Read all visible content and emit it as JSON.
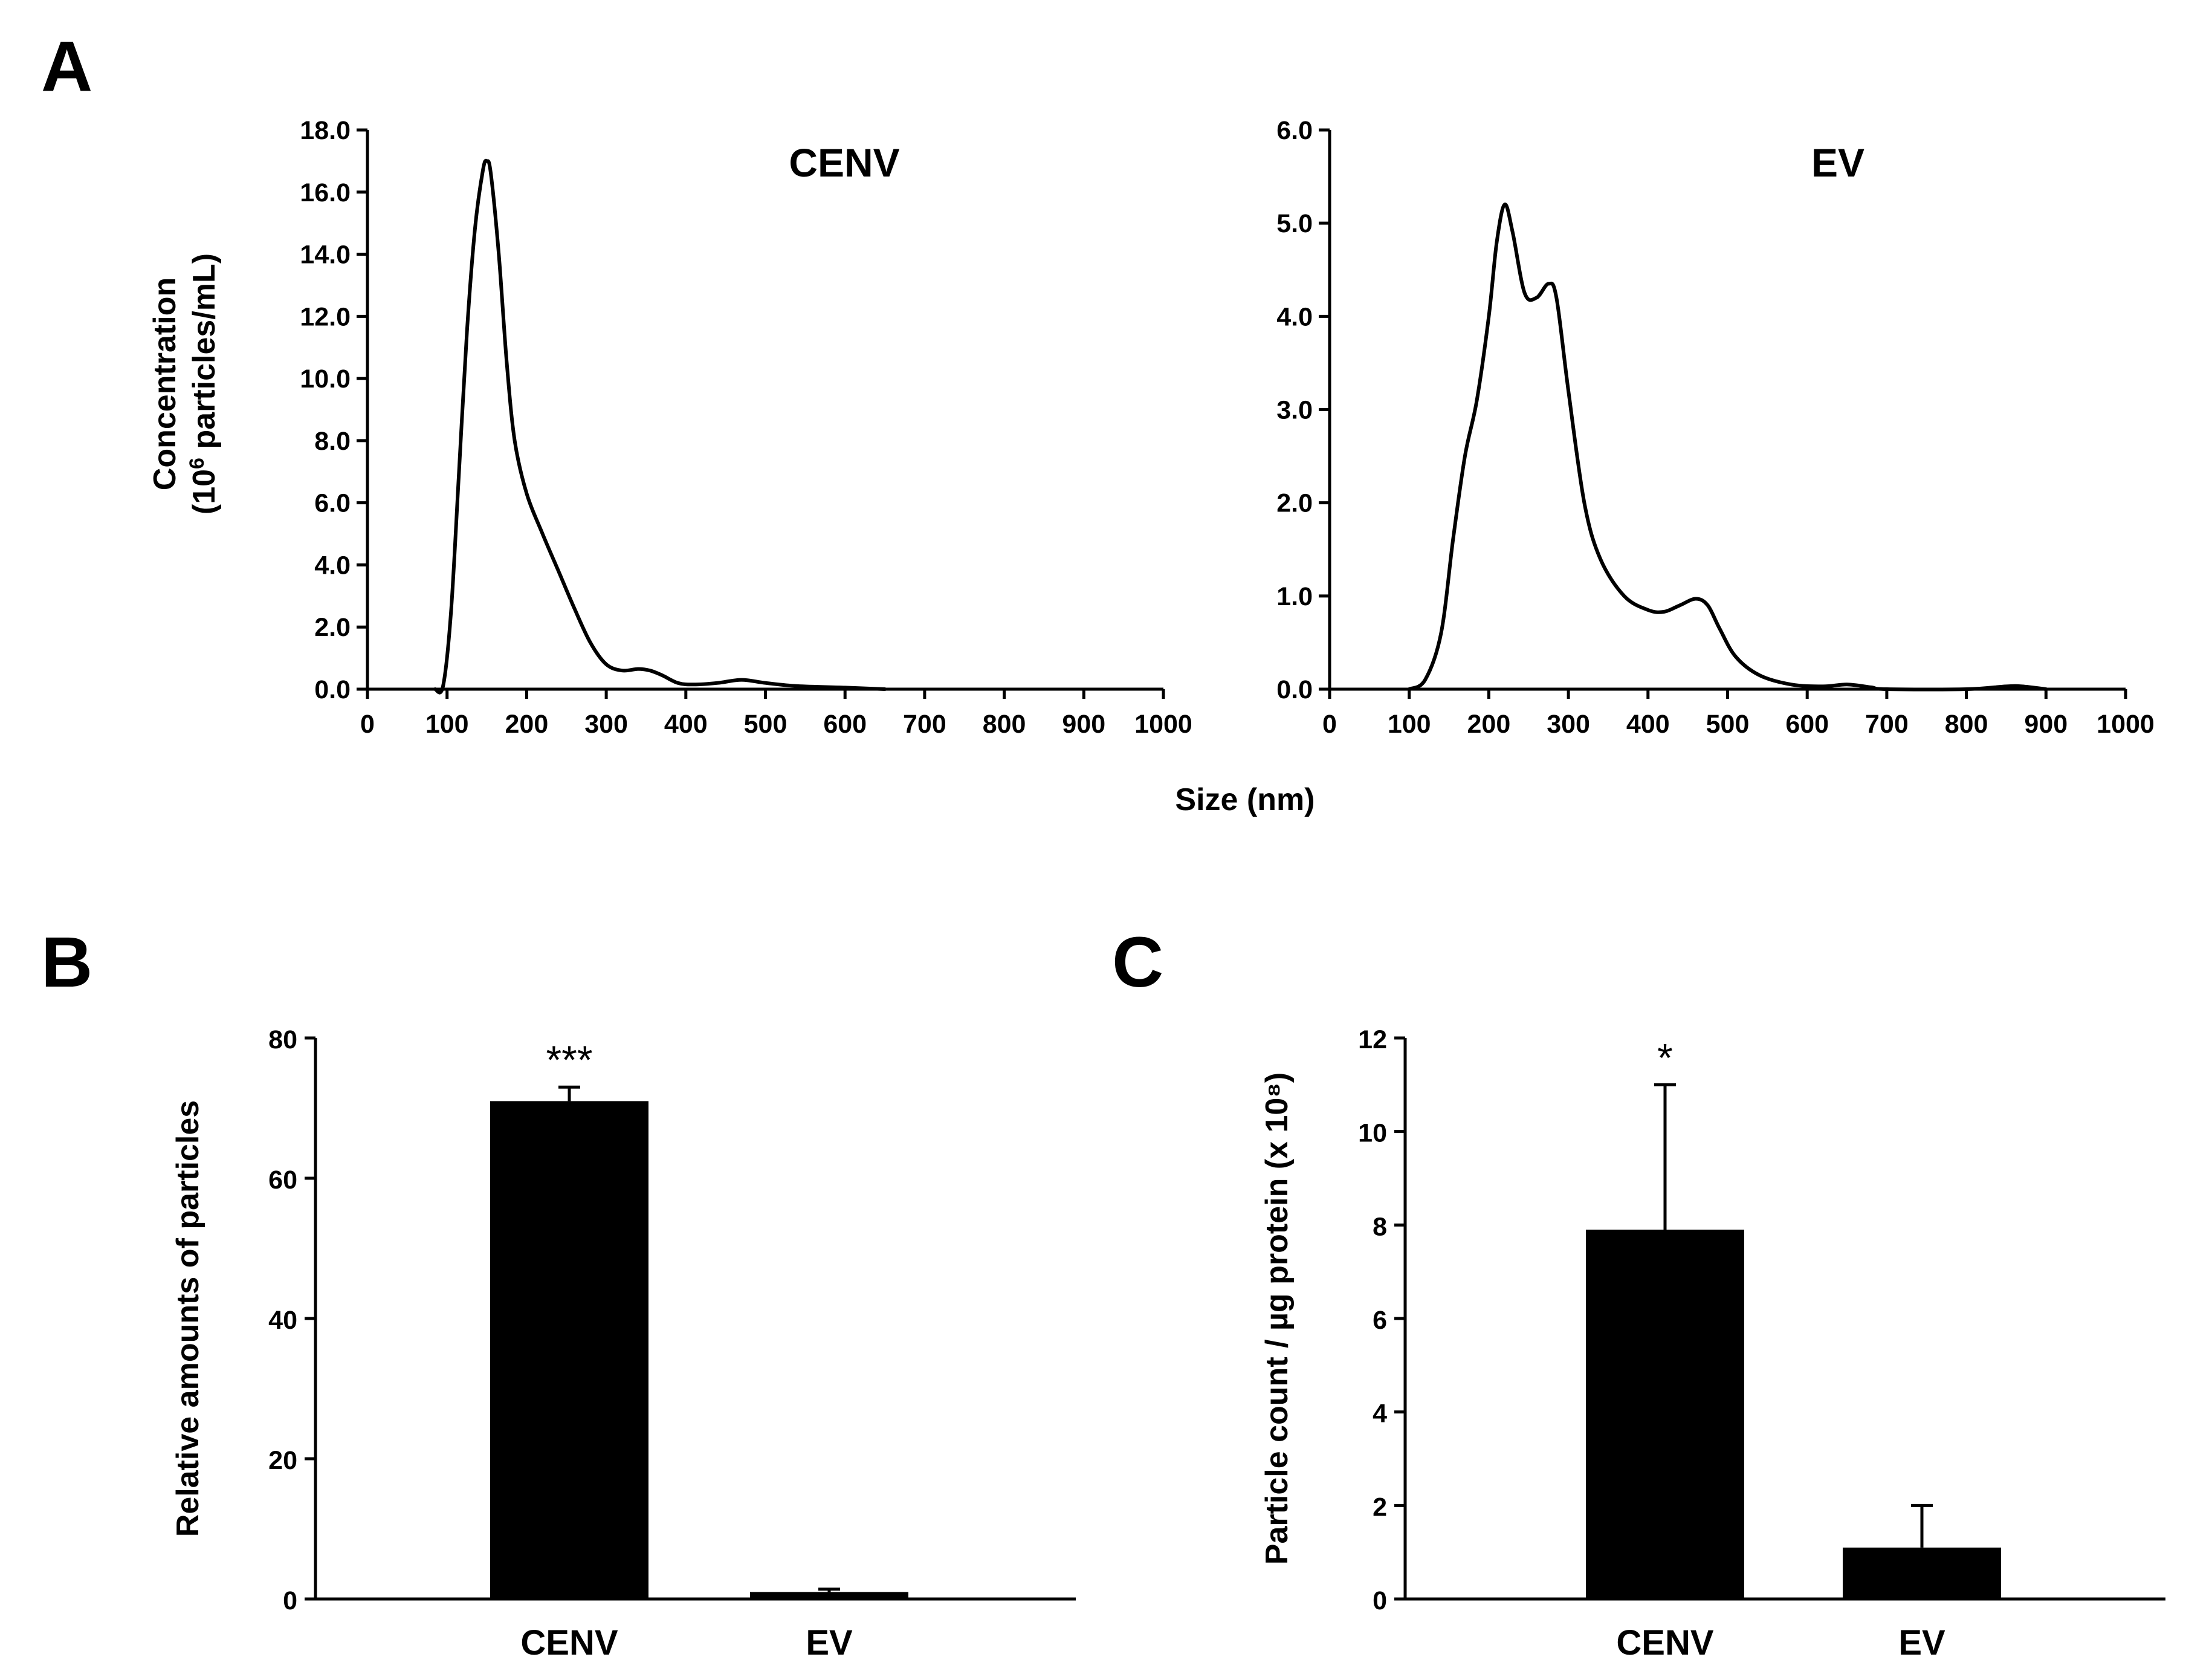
{
  "panels": {
    "a": {
      "label": "A"
    },
    "b": {
      "label": "B"
    },
    "c": {
      "label": "C"
    }
  },
  "shared_xlabel": "Size (nm)",
  "a_ylabel": {
    "line1": "Concentration",
    "line2_prefix": "(10",
    "line2_sup": "6",
    "line2_suffix": " particles/mL)"
  },
  "chart_data": [
    {
      "id": "cenv-distribution",
      "type": "line",
      "title": "CENV",
      "xlabel": "Size (nm)",
      "ylabel": "Concentration (10^6 particles/mL)",
      "xlim": [
        0,
        1000
      ],
      "ylim": [
        0,
        18
      ],
      "xticks": [
        0,
        100,
        200,
        300,
        400,
        500,
        600,
        700,
        800,
        900,
        1000
      ],
      "yticks": [
        "0.0",
        "2.0",
        "4.0",
        "6.0",
        "8.0",
        "10.0",
        "12.0",
        "14.0",
        "16.0",
        "18.0"
      ],
      "series": [
        {
          "name": "CENV",
          "x": [
            85,
            95,
            105,
            115,
            125,
            135,
            145,
            150,
            155,
            165,
            175,
            185,
            200,
            220,
            240,
            260,
            280,
            300,
            320,
            340,
            355,
            370,
            390,
            410,
            440,
            470,
            500,
            540,
            600,
            650
          ],
          "y": [
            0.0,
            0.1,
            2.5,
            7.0,
            11.5,
            14.8,
            16.7,
            17.0,
            16.6,
            14.0,
            10.5,
            8.0,
            6.3,
            5.0,
            3.8,
            2.6,
            1.5,
            0.8,
            0.6,
            0.65,
            0.6,
            0.45,
            0.2,
            0.15,
            0.2,
            0.3,
            0.2,
            0.1,
            0.05,
            0.0
          ]
        }
      ]
    },
    {
      "id": "ev-distribution",
      "type": "line",
      "title": "EV",
      "xlabel": "Size (nm)",
      "ylabel": "",
      "xlim": [
        0,
        1000
      ],
      "ylim": [
        0,
        6
      ],
      "xticks": [
        0,
        100,
        200,
        300,
        400,
        500,
        600,
        700,
        800,
        900,
        1000
      ],
      "yticks": [
        "0.0",
        "1.0",
        "2.0",
        "3.0",
        "4.0",
        "5.0",
        "6.0"
      ],
      "series": [
        {
          "name": "EV",
          "x": [
            100,
            120,
            140,
            155,
            170,
            185,
            200,
            210,
            220,
            230,
            245,
            260,
            275,
            285,
            300,
            320,
            340,
            370,
            400,
            420,
            440,
            460,
            475,
            490,
            510,
            540,
            580,
            620,
            650,
            680,
            700,
            800,
            850,
            870,
            900
          ],
          "y": [
            0.0,
            0.1,
            0.6,
            1.6,
            2.5,
            3.1,
            4.0,
            4.8,
            5.2,
            4.9,
            4.25,
            4.2,
            4.35,
            4.2,
            3.2,
            2.0,
            1.4,
            1.0,
            0.85,
            0.83,
            0.9,
            0.97,
            0.9,
            0.65,
            0.35,
            0.15,
            0.05,
            0.03,
            0.05,
            0.02,
            0.0,
            0.0,
            0.03,
            0.03,
            0.0
          ]
        }
      ]
    },
    {
      "id": "relative-amounts",
      "type": "bar",
      "title": "",
      "xlabel": "",
      "ylabel": "Relative amounts of particles",
      "ylim": [
        0,
        80
      ],
      "yticks": [
        "0",
        "20",
        "40",
        "60",
        "80"
      ],
      "categories": [
        "CENV",
        "EV"
      ],
      "values": [
        71,
        1
      ],
      "errors": [
        2,
        0.4
      ],
      "annotations": [
        "***",
        ""
      ]
    },
    {
      "id": "particle-count-per-protein",
      "type": "bar",
      "title": "",
      "xlabel": "",
      "ylabel": "Particle count / µg protein (x 10⁸)",
      "ylim": [
        0,
        12
      ],
      "yticks": [
        "0",
        "2",
        "4",
        "6",
        "8",
        "10",
        "12"
      ],
      "categories": [
        "CENV",
        "EV"
      ],
      "values": [
        7.9,
        1.1
      ],
      "errors": [
        3.1,
        0.9
      ],
      "annotations": [
        "*",
        ""
      ]
    }
  ]
}
